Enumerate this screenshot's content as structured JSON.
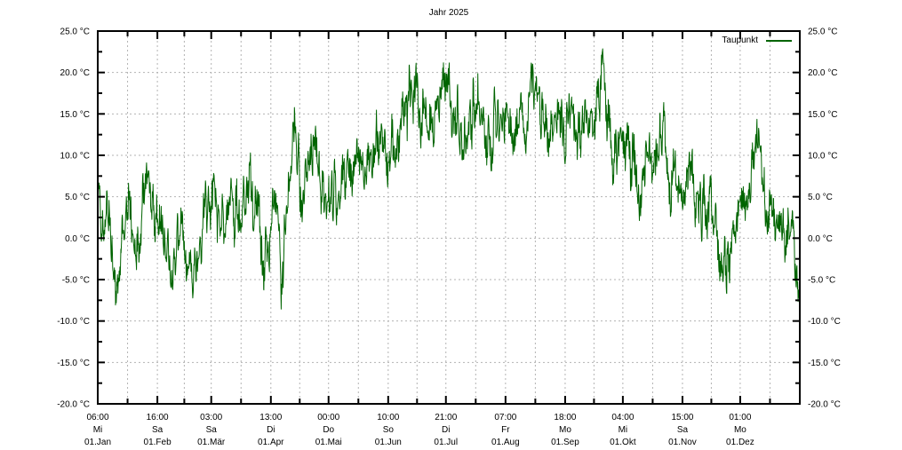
{
  "title": "Jahr 2025",
  "legend": {
    "label": "Taupunkt",
    "color": "#006400",
    "position": "top-right"
  },
  "colors": {
    "series_green": "#006400",
    "grid_gray": "#b3b3b3",
    "border_black": "#000000",
    "background": "#ffffff"
  },
  "y_axis": {
    "unit": "°C",
    "min": -20.0,
    "max": 25.0,
    "major_step": 5.0,
    "minor_step": 2.5,
    "tick_values": [
      25,
      20,
      15,
      10,
      5,
      0,
      -5,
      -10,
      -15,
      -20
    ],
    "tick_labels": [
      "25.0 °C",
      "20.0 °C",
      "15.0 °C",
      "10.0 °C",
      "5.0 °C",
      "0.0 °C",
      "-5.0 °C",
      "-10.0 °C",
      "-15.0 °C",
      "-20.0 °C"
    ],
    "mirrored_right": true
  },
  "x_axis": {
    "ticks": [
      {
        "time": "06:00",
        "weekday": "Mi",
        "date": "01.Jan",
        "day": 0
      },
      {
        "time": "16:00",
        "weekday": "Sa",
        "date": "01.Feb",
        "day": 31
      },
      {
        "time": "03:00",
        "weekday": "Sa",
        "date": "01.Mär",
        "day": 59
      },
      {
        "time": "13:00",
        "weekday": "Di",
        "date": "01.Apr",
        "day": 90
      },
      {
        "time": "00:00",
        "weekday": "Do",
        "date": "01.Mai",
        "day": 120
      },
      {
        "time": "10:00",
        "weekday": "So",
        "date": "01.Jun",
        "day": 151
      },
      {
        "time": "21:00",
        "weekday": "Di",
        "date": "01.Jul",
        "day": 181
      },
      {
        "time": "07:00",
        "weekday": "Fr",
        "date": "01.Aug",
        "day": 212
      },
      {
        "time": "18:00",
        "weekday": "Mo",
        "date": "01.Sep",
        "day": 243
      },
      {
        "time": "04:00",
        "weekday": "Mi",
        "date": "01.Okt",
        "day": 273
      },
      {
        "time": "15:00",
        "weekday": "Sa",
        "date": "01.Nov",
        "day": 304
      },
      {
        "time": "01:00",
        "weekday": "Mo",
        "date": "01.Dez",
        "day": 334
      }
    ],
    "span_days": 365
  },
  "chart_data": {
    "type": "line",
    "title": "Jahr 2025",
    "xlabel": "",
    "ylabel": "°C",
    "ylim": [
      -20.0,
      25.0
    ],
    "x_range": "01.Jan 2025 06:00 – 31.Dez 2025",
    "grid": true,
    "legend_position": "top-right",
    "series": [
      {
        "name": "Taupunkt",
        "color": "#006400",
        "unit": "°C",
        "anchors_format": "[day_of_year, mean_degC, swing_amplitude_degC]",
        "anchors": [
          [
            0,
            7,
            2.5
          ],
          [
            2,
            3,
            4
          ],
          [
            4,
            0.5,
            4
          ],
          [
            8,
            -2,
            4
          ],
          [
            12,
            -5,
            4
          ],
          [
            16,
            1,
            4
          ],
          [
            20,
            -1,
            4.5
          ],
          [
            26,
            5,
            4
          ],
          [
            30,
            1,
            4
          ],
          [
            34,
            2,
            4
          ],
          [
            38,
            -4,
            4.5
          ],
          [
            44,
            2,
            4
          ],
          [
            50,
            -4,
            4.5
          ],
          [
            56,
            3,
            3.5
          ],
          [
            60,
            2,
            4
          ],
          [
            64,
            3,
            4
          ],
          [
            68,
            -1,
            4
          ],
          [
            74,
            5,
            4
          ],
          [
            80,
            7,
            4.5
          ],
          [
            86,
            -1,
            4.5
          ],
          [
            91,
            4,
            3.5
          ],
          [
            95,
            -2,
            4.5
          ],
          [
            101,
            10,
            4.5
          ],
          [
            106,
            8,
            4
          ],
          [
            112,
            11,
            4.5
          ],
          [
            117,
            6,
            4
          ],
          [
            121,
            6,
            4
          ],
          [
            125,
            2,
            3.5
          ],
          [
            130,
            7,
            4
          ],
          [
            136,
            9,
            4
          ],
          [
            143,
            10,
            4.5
          ],
          [
            148,
            11,
            4.5
          ],
          [
            153,
            13,
            4.5
          ],
          [
            158,
            13,
            4
          ],
          [
            163,
            16,
            4.5
          ],
          [
            167,
            17,
            4.5
          ],
          [
            172,
            14,
            4
          ],
          [
            177,
            16,
            4.5
          ],
          [
            183,
            17,
            4.5
          ],
          [
            189,
            11,
            4
          ],
          [
            194,
            11,
            4.5
          ],
          [
            199,
            16,
            4.5
          ],
          [
            203,
            14,
            4
          ],
          [
            207,
            12.5,
            4.5
          ],
          [
            212,
            15,
            4.5
          ],
          [
            217,
            16,
            4
          ],
          [
            222,
            15,
            4
          ],
          [
            227,
            18.5,
            4.5
          ],
          [
            232,
            15,
            4
          ],
          [
            238,
            12,
            4.5
          ],
          [
            244,
            15,
            4
          ],
          [
            250,
            14,
            4
          ],
          [
            256,
            15,
            4
          ],
          [
            262,
            15,
            4.5
          ],
          [
            268,
            11,
            4
          ],
          [
            273,
            9,
            4
          ],
          [
            277,
            7,
            6
          ],
          [
            283,
            8,
            4
          ],
          [
            289,
            9,
            4
          ],
          [
            295,
            10,
            4
          ],
          [
            300,
            7,
            4
          ],
          [
            304,
            5,
            3.5
          ],
          [
            309,
            8,
            4.5
          ],
          [
            313,
            4,
            4.5
          ],
          [
            318,
            2,
            5
          ],
          [
            323,
            -1,
            5
          ],
          [
            327,
            -5,
            6
          ],
          [
            331,
            3,
            3
          ],
          [
            336,
            4,
            3.5
          ],
          [
            340,
            8,
            4
          ],
          [
            343,
            9,
            4
          ],
          [
            347,
            3,
            4
          ],
          [
            351,
            2,
            4
          ],
          [
            355,
            4,
            4
          ],
          [
            358,
            1,
            4
          ],
          [
            361,
            -2,
            4
          ],
          [
            363,
            -5,
            4
          ],
          [
            365,
            -9,
            3
          ]
        ],
        "extremes": {
          "max_degC": 23.5,
          "max_around": "mid Aug",
          "min_degC": -11,
          "min_around": "late Nov / end Dez"
        }
      }
    ]
  }
}
